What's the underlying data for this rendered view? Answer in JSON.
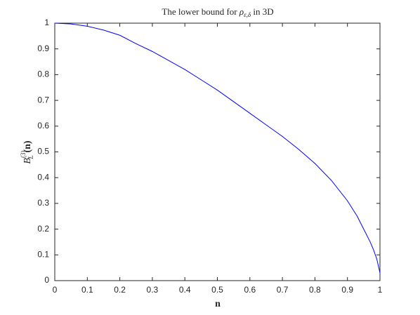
{
  "chart_data": {
    "type": "line",
    "title": [
      "The lower bound for ",
      "ρ",
      "ε,δ",
      " in 3D"
    ],
    "xlabel": "n",
    "ylabel": [
      "B",
      "(3)",
      "L",
      "(n)"
    ],
    "x": [
      0,
      0.05,
      0.1,
      0.15,
      0.2,
      0.25,
      0.3,
      0.35,
      0.4,
      0.45,
      0.5,
      0.55,
      0.6,
      0.65,
      0.7,
      0.75,
      0.8,
      0.85,
      0.9,
      0.93,
      0.95,
      0.97,
      0.98,
      0.99,
      1
    ],
    "series": [
      {
        "color": "#0000ff",
        "values": [
          1,
          0.997,
          0.988,
          0.973,
          0.953,
          0.92,
          0.89,
          0.855,
          0.82,
          0.78,
          0.74,
          0.695,
          0.65,
          0.605,
          0.56,
          0.51,
          0.455,
          0.39,
          0.31,
          0.25,
          0.2,
          0.15,
          0.12,
          0.085,
          0.03
        ]
      }
    ],
    "xlim": [
      0,
      1
    ],
    "ylim": [
      0,
      1
    ],
    "xticks": [
      0,
      0.1,
      0.2,
      0.3,
      0.4,
      0.5,
      0.6,
      0.7,
      0.8,
      0.9,
      1
    ],
    "yticks": [
      0,
      0.1,
      0.2,
      0.3,
      0.4,
      0.5,
      0.6,
      0.7,
      0.8,
      0.9,
      1
    ],
    "grid": false
  }
}
